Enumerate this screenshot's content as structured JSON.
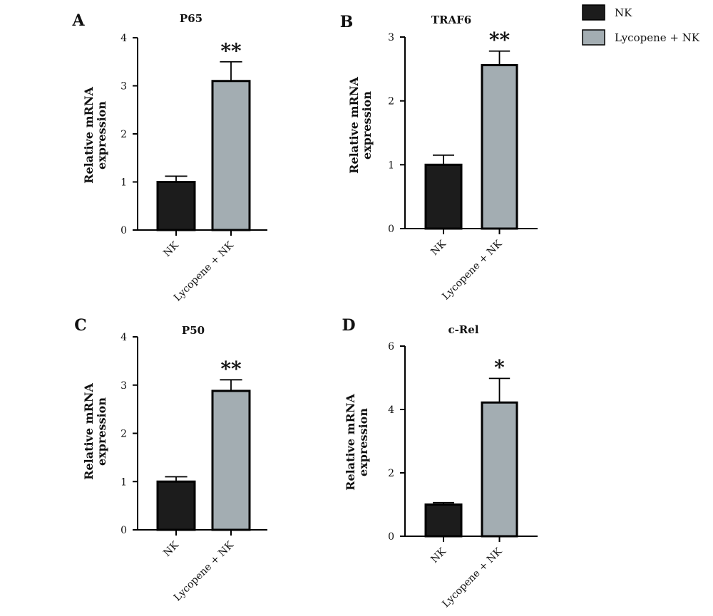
{
  "legend": {
    "items": [
      {
        "label": "NK",
        "color": "#1c1c1c"
      },
      {
        "label": "Lycopene + NK",
        "color": "#a3adb2"
      }
    ]
  },
  "chart_data": [
    {
      "type": "bar",
      "panel": "A",
      "title": "P65",
      "ylabel": [
        "Relative mRNA",
        "expression"
      ],
      "categories": [
        "NK",
        "Lycopene + NK"
      ],
      "values": [
        1.0,
        3.1
      ],
      "errors": [
        0.12,
        0.4
      ],
      "significance": [
        "",
        "**"
      ],
      "ylim": [
        0,
        4
      ],
      "yticks": [
        0,
        1,
        2,
        3,
        4
      ],
      "colors": [
        "#1c1c1c",
        "#a3adb2"
      ]
    },
    {
      "type": "bar",
      "panel": "B",
      "title": "TRAF6",
      "ylabel": [
        "Relative mRNA",
        "expression"
      ],
      "categories": [
        "NK",
        "Lycopene + NK"
      ],
      "values": [
        1.0,
        2.56
      ],
      "errors": [
        0.15,
        0.22
      ],
      "significance": [
        "",
        "**"
      ],
      "ylim": [
        0,
        3
      ],
      "yticks": [
        0,
        1,
        2,
        3
      ],
      "colors": [
        "#1c1c1c",
        "#a3adb2"
      ]
    },
    {
      "type": "bar",
      "panel": "C",
      "title": "P50",
      "ylabel": [
        "Relative mRNA",
        "expression"
      ],
      "categories": [
        "NK",
        "Lycopene + NK"
      ],
      "values": [
        1.0,
        2.88
      ],
      "errors": [
        0.1,
        0.23
      ],
      "significance": [
        "",
        "**"
      ],
      "ylim": [
        0,
        4
      ],
      "yticks": [
        0,
        1,
        2,
        3,
        4
      ],
      "colors": [
        "#1c1c1c",
        "#a3adb2"
      ]
    },
    {
      "type": "bar",
      "panel": "D",
      "title": "c-Rel",
      "ylabel": [
        "Relative mRNA",
        "expression"
      ],
      "categories": [
        "NK",
        "Lycopene + NK"
      ],
      "values": [
        1.0,
        4.22
      ],
      "errors": [
        0.06,
        0.76
      ],
      "significance": [
        "",
        "*"
      ],
      "ylim": [
        0,
        6
      ],
      "yticks": [
        0,
        2,
        4,
        6
      ],
      "colors": [
        "#1c1c1c",
        "#a3adb2"
      ]
    }
  ]
}
